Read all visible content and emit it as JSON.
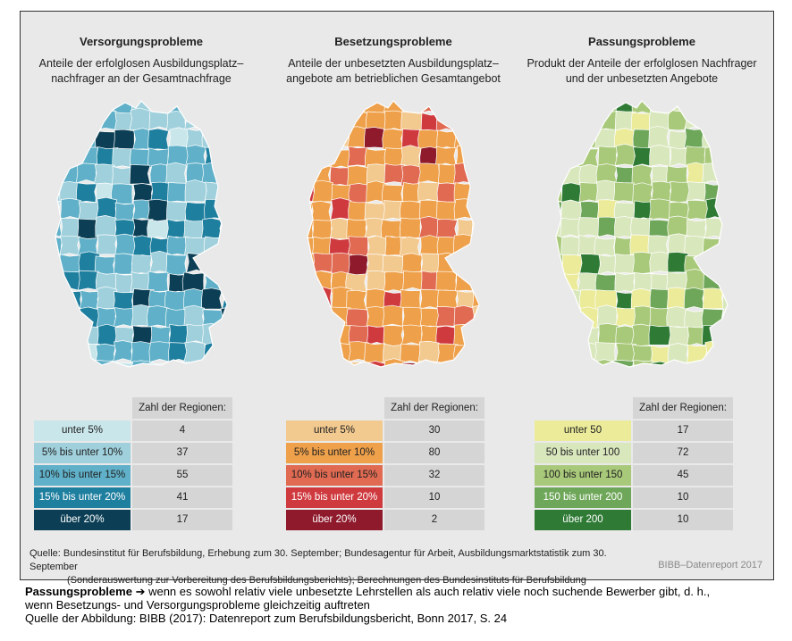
{
  "chart_data": [
    {
      "type": "choropleth-map",
      "title": "Versorgungsprobleme",
      "subtitle_lines": [
        "Anteile der erfolglosen Ausbildungsplatz–",
        "nachfrager an der Gesamtnachfrage"
      ],
      "legend_header": "Zahl der Regionen:",
      "categories": [
        {
          "label": "unter 5%",
          "count": "4",
          "color": "#c9e6ea"
        },
        {
          "label": "5% bis unter 10%",
          "count": "37",
          "color": "#9fd0dc"
        },
        {
          "label": "10% bis unter 15%",
          "count": "55",
          "color": "#5fb0c8"
        },
        {
          "label": "15% bis unter 20%",
          "count": "41",
          "color": "#1f7f9f"
        },
        {
          "label": "über 20%",
          "count": "17",
          "color": "#0c3f55"
        }
      ]
    },
    {
      "type": "choropleth-map",
      "title": "Besetzungsprobleme",
      "subtitle_lines": [
        "Anteile der unbesetzten Ausbildungsplatz–",
        "angebote am betrieblichen Gesamtangebot"
      ],
      "legend_header": "Zahl der Regionen:",
      "categories": [
        {
          "label": "unter 5%",
          "count": "30",
          "color": "#f2c98f"
        },
        {
          "label": "5% bis unter 10%",
          "count": "80",
          "color": "#eea04a"
        },
        {
          "label": "10% bis unter 15%",
          "count": "32",
          "color": "#e06a52"
        },
        {
          "label": "15% bis unter 20%",
          "count": "10",
          "color": "#cf3a3f"
        },
        {
          "label": "über 20%",
          "count": "2",
          "color": "#8e1a2c"
        }
      ]
    },
    {
      "type": "choropleth-map",
      "title": "Passungsprobleme",
      "subtitle_lines": [
        "Produkt der Anteile der erfolglosen Nachfrager",
        "und der unbesetzten Angebote"
      ],
      "legend_header": "Zahl der Regionen:",
      "categories": [
        {
          "label": "unter 50",
          "count": "17",
          "color": "#ebeb9a"
        },
        {
          "label": "50 bis unter 100",
          "count": "72",
          "color": "#d9e7bd"
        },
        {
          "label": "100 bis unter 150",
          "count": "45",
          "color": "#a9c97a"
        },
        {
          "label": "150 bis unter 200",
          "count": "10",
          "color": "#6fa75a"
        },
        {
          "label": "über 200",
          "count": "10",
          "color": "#2f7a35"
        }
      ]
    }
  ],
  "source_lines": [
    "Quelle: Bundesinstitut für Berufsbildung, Erhebung zum 30. September; Bundesagentur für Arbeit, Ausbildungsmarktstatistik zum 30. September",
    "(Sonderauswertung zur Vorbereitung des Berufsbildungsberichts); Berechnungen des Bundesinstituts für Berufsbildung"
  ],
  "brand": "BIBB–Datenreport 2017",
  "note": {
    "bold": "Passungsprobleme",
    "arrow": "➔",
    "text1": " wenn es sowohl relativ viele unbesetzte Lehrstellen als auch relativ viele noch suchende Bewerber gibt, d. h.,",
    "text2": "wenn Besetzungs- und Versorgungsprobleme gleichzeitig auftreten",
    "text3": "Quelle der Abbildung: BIBB (2017): Datenreport zum Berufsbildungsbericht, Bonn 2017, S. 24"
  }
}
